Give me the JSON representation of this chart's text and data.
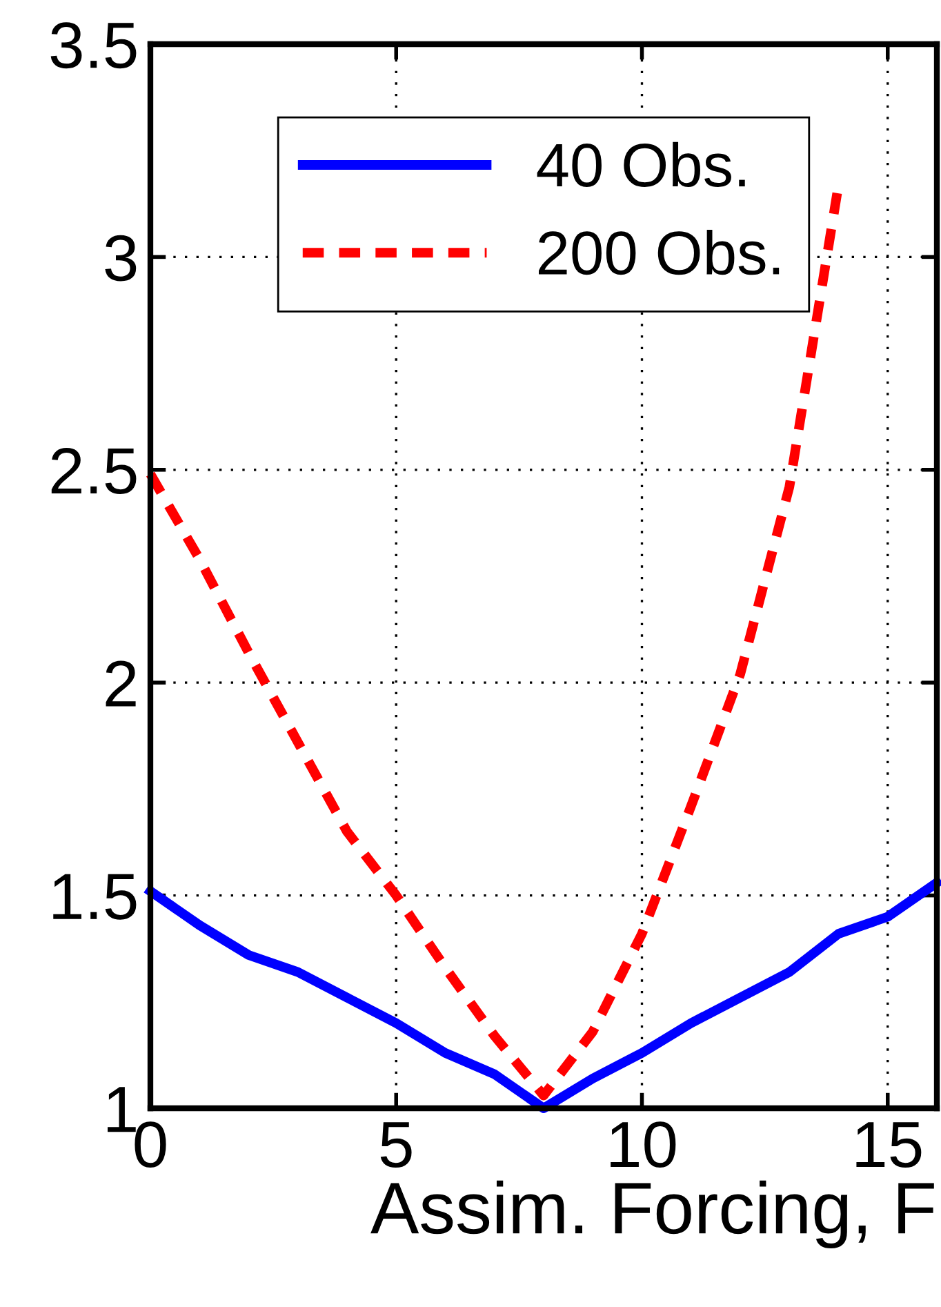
{
  "chart_data": {
    "type": "line",
    "xlabel": "Assim. Forcing, F",
    "x": [
      0,
      1,
      2,
      3,
      4,
      5,
      6,
      7,
      8,
      9,
      10,
      11,
      12,
      13,
      14,
      15,
      16
    ],
    "series": [
      {
        "name": "40 Obs.",
        "color": "#0000ff",
        "line_style": "solid",
        "values": [
          1.51,
          1.43,
          1.36,
          1.32,
          1.26,
          1.2,
          1.13,
          1.08,
          1.0,
          1.07,
          1.13,
          1.2,
          1.26,
          1.32,
          1.41,
          1.45,
          1.53
        ]
      },
      {
        "name": "200 Obs.",
        "color": "#ff0000",
        "line_style": "dashed",
        "x": [
          0,
          1,
          2,
          3,
          4,
          5,
          6,
          7,
          8,
          9,
          10,
          11,
          12,
          13,
          14
        ],
        "values": [
          2.49,
          2.29,
          2.07,
          1.86,
          1.65,
          1.5,
          1.33,
          1.17,
          1.03,
          1.18,
          1.41,
          1.71,
          2.02,
          2.46,
          3.17
        ]
      }
    ],
    "xlim": [
      0,
      16
    ],
    "xticks": [
      0,
      5,
      10,
      15
    ],
    "ylim": [
      1,
      3.5
    ],
    "yticks": [
      1,
      1.5,
      2,
      2.5,
      3,
      3.5
    ],
    "grid": true,
    "legend": "top"
  }
}
